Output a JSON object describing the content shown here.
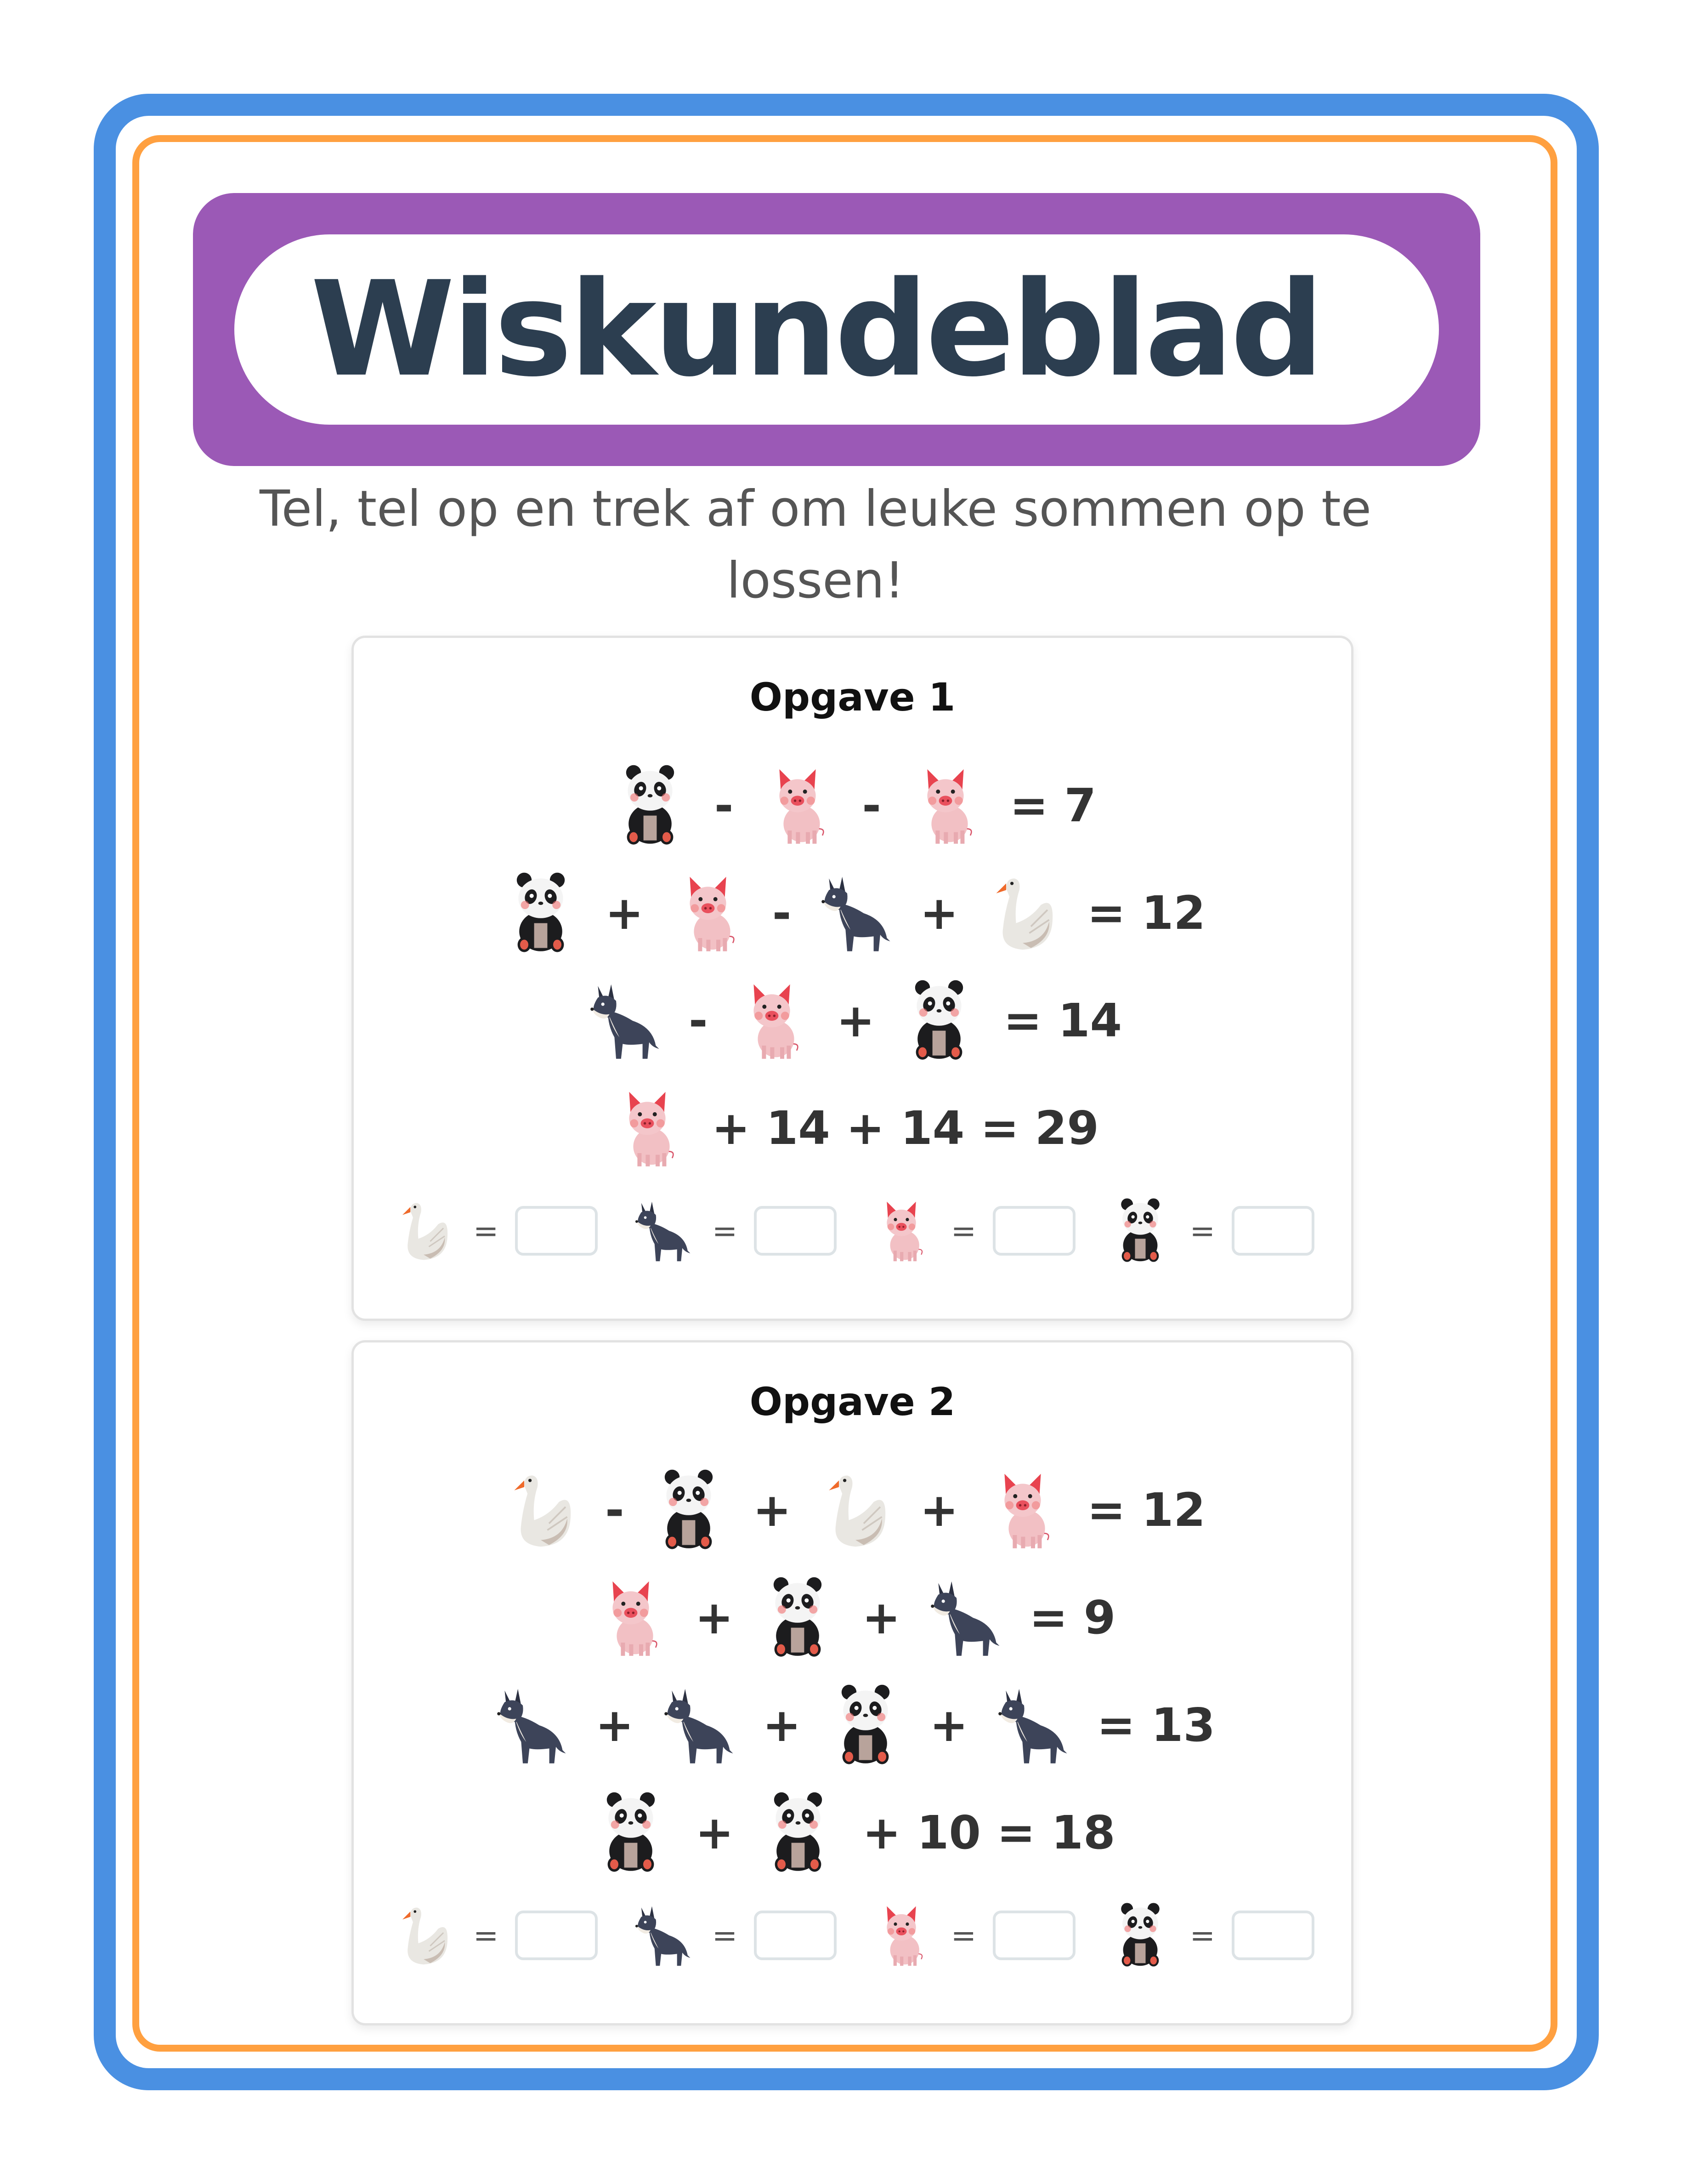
{
  "header": {
    "title": "Wiskundeblad"
  },
  "subtitle": {
    "line1": "Tel, tel op en trek af om leuke sommen op te",
    "line2": "lossen!"
  },
  "colors": {
    "outer_border": "#4a90e2",
    "inner_border": "#ffa040",
    "header": "#9b59b6",
    "title": "#2c3e50"
  },
  "opgaven": [
    {
      "title": "Opgave 1",
      "equations": [
        [
          {
            "animal": "panda"
          },
          {
            "op": "-"
          },
          {
            "animal": "pig"
          },
          {
            "op": "-"
          },
          {
            "animal": "pig"
          },
          {
            "op": "= 7"
          }
        ],
        [
          {
            "animal": "panda"
          },
          {
            "op": "+"
          },
          {
            "animal": "pig"
          },
          {
            "op": "-"
          },
          {
            "animal": "wolf"
          },
          {
            "op": "+"
          },
          {
            "animal": "swan"
          },
          {
            "op": "= 12"
          }
        ],
        [
          {
            "animal": "wolf"
          },
          {
            "op": "-"
          },
          {
            "animal": "pig"
          },
          {
            "op": "+"
          },
          {
            "animal": "panda"
          },
          {
            "op": "= 14"
          }
        ],
        [
          {
            "animal": "pig"
          },
          {
            "op": "+ 14 + 14 = 29"
          }
        ]
      ],
      "answers": [
        {
          "animal": "swan",
          "eq": "=",
          "value": ""
        },
        {
          "animal": "wolf",
          "eq": "=",
          "value": ""
        },
        {
          "animal": "pig",
          "eq": "=",
          "value": ""
        },
        {
          "animal": "panda",
          "eq": "=",
          "value": ""
        }
      ]
    },
    {
      "title": "Opgave 2",
      "equations": [
        [
          {
            "animal": "swan"
          },
          {
            "op": "-"
          },
          {
            "animal": "panda"
          },
          {
            "op": "+"
          },
          {
            "animal": "swan"
          },
          {
            "op": "+"
          },
          {
            "animal": "pig"
          },
          {
            "op": "= 12"
          }
        ],
        [
          {
            "animal": "pig"
          },
          {
            "op": "+"
          },
          {
            "animal": "panda"
          },
          {
            "op": "+"
          },
          {
            "animal": "wolf"
          },
          {
            "op": "= 9"
          }
        ],
        [
          {
            "animal": "wolf"
          },
          {
            "op": "+"
          },
          {
            "animal": "wolf"
          },
          {
            "op": "+"
          },
          {
            "animal": "panda"
          },
          {
            "op": "+"
          },
          {
            "animal": "wolf"
          },
          {
            "op": "= 13"
          }
        ],
        [
          {
            "animal": "panda"
          },
          {
            "op": "+"
          },
          {
            "animal": "panda"
          },
          {
            "op": "+ 10 = 18"
          }
        ]
      ],
      "answers": [
        {
          "animal": "swan",
          "eq": "=",
          "value": ""
        },
        {
          "animal": "wolf",
          "eq": "=",
          "value": ""
        },
        {
          "animal": "pig",
          "eq": "=",
          "value": ""
        },
        {
          "animal": "panda",
          "eq": "=",
          "value": ""
        }
      ]
    }
  ]
}
